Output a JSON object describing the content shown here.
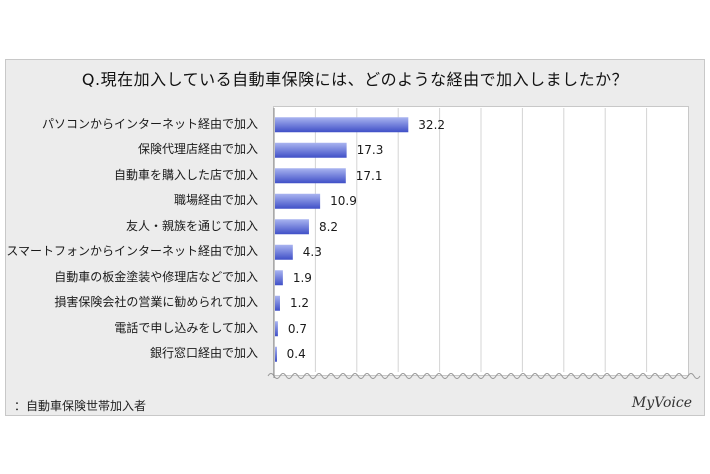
{
  "title": "Q.現在加入している自動車保険には、どのような経由で加入しましたか？",
  "footnote": "：自動車保険世帯加入者",
  "brand": "MyVoice",
  "colors": {
    "bar_light": "#a9b4f0",
    "bar_dark": "#3f4fc7",
    "grid": "#d4d4d4"
  },
  "chart_data": {
    "type": "bar",
    "orientation": "horizontal",
    "title": "Q.現在加入している自動車保険には、どのような経由で加入しましたか？",
    "categories": [
      "パソコンからインターネット経由で加入",
      "保険代理店経由で加入",
      "自動車を購入した店で加入",
      "職場経由で加入",
      "友人・親族を通じて加入",
      "スマートフォンからインターネット経由で加入",
      "自動車の板金塗装や修理店などで加入",
      "損害保険会社の営業に勧められて加入",
      "電話で申し込みをして加入",
      "銀行窓口経由で加入"
    ],
    "values": [
      32.2,
      17.3,
      17.1,
      10.9,
      8.2,
      4.3,
      1.9,
      1.2,
      0.7,
      0.4
    ],
    "value_labels": [
      "32.2",
      "17.3",
      "17.1",
      "10.9",
      "8.2",
      "4.3",
      "1.9",
      "1.2",
      "0.7",
      "0.4"
    ],
    "xlim": [
      0,
      100
    ],
    "grid": true,
    "legend": "none"
  }
}
